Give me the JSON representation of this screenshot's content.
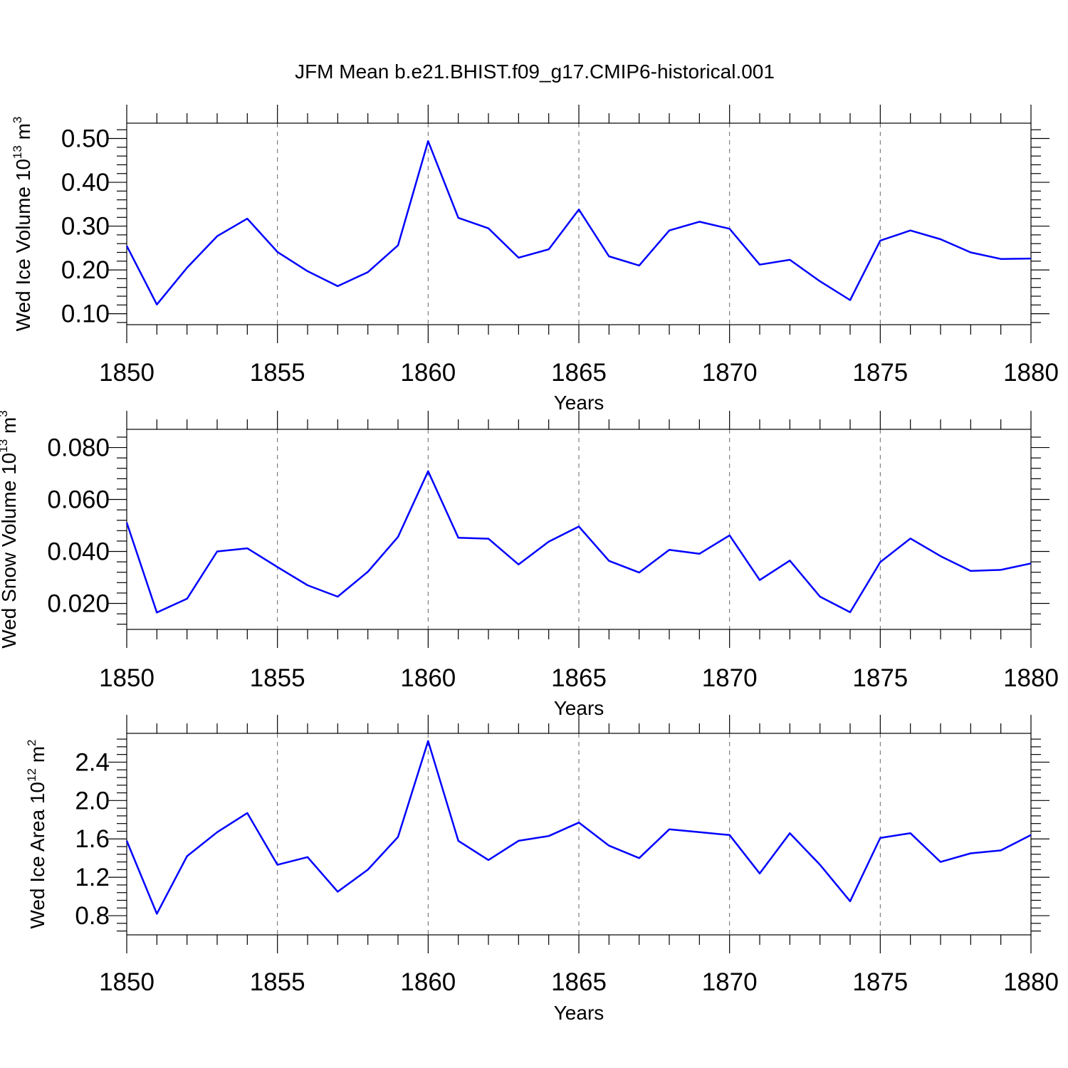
{
  "title": "JFM Mean b.e21.BHIST.f09_g17.CMIP6-historical.001",
  "colors": {
    "series": "#0000ff",
    "axis": "#000000",
    "grid": "#666666"
  },
  "chart_data": [
    {
      "type": "line",
      "ylabel": {
        "main": "Wed Ice Volume 10",
        "exp": "13",
        "unit": " m",
        "unit_exp": "3"
      },
      "xlabel": "Years",
      "xlim": [
        1850,
        1880
      ],
      "ylim": [
        0.075,
        0.535
      ],
      "x_ticks": [
        "1850",
        "1855",
        "1860",
        "1865",
        "1870",
        "1875",
        "1880"
      ],
      "y_ticks": [
        "0.10",
        "0.20",
        "0.30",
        "0.40",
        "0.50"
      ],
      "x": [
        1850,
        1851,
        1852,
        1853,
        1854,
        1855,
        1856,
        1857,
        1858,
        1859,
        1860,
        1861,
        1862,
        1863,
        1864,
        1865,
        1866,
        1867,
        1868,
        1869,
        1870,
        1871,
        1872,
        1873,
        1874,
        1875,
        1876,
        1877,
        1878,
        1879,
        1880
      ],
      "values": [
        0.255,
        0.121,
        0.205,
        0.277,
        0.317,
        0.241,
        0.197,
        0.163,
        0.195,
        0.256,
        0.494,
        0.319,
        0.295,
        0.228,
        0.247,
        0.338,
        0.231,
        0.21,
        0.29,
        0.31,
        0.294,
        0.212,
        0.223,
        0.174,
        0.131,
        0.267,
        0.29,
        0.27,
        0.24,
        0.225,
        0.226
      ]
    },
    {
      "type": "line",
      "ylabel": {
        "main": "Wed Snow Volume 10",
        "exp": "13",
        "unit": " m",
        "unit_exp": "3"
      },
      "xlabel": "Years",
      "xlim": [
        1850,
        1880
      ],
      "ylim": [
        0.01,
        0.087
      ],
      "x_ticks": [
        "1850",
        "1855",
        "1860",
        "1865",
        "1870",
        "1875",
        "1880"
      ],
      "y_ticks": [
        "0.020",
        "0.040",
        "0.060",
        "0.080"
      ],
      "x": [
        1850,
        1851,
        1852,
        1853,
        1854,
        1855,
        1856,
        1857,
        1858,
        1859,
        1860,
        1861,
        1862,
        1863,
        1864,
        1865,
        1866,
        1867,
        1868,
        1869,
        1870,
        1871,
        1872,
        1873,
        1874,
        1875,
        1876,
        1877,
        1878,
        1879,
        1880
      ],
      "values": [
        0.0511,
        0.0165,
        0.0218,
        0.04,
        0.0412,
        0.034,
        0.027,
        0.0226,
        0.0322,
        0.0456,
        0.0709,
        0.0453,
        0.0449,
        0.035,
        0.0438,
        0.0496,
        0.0364,
        0.0319,
        0.0406,
        0.0391,
        0.0462,
        0.029,
        0.0365,
        0.0226,
        0.0166,
        0.0359,
        0.045,
        0.0382,
        0.0325,
        0.0329,
        0.0354
      ]
    },
    {
      "type": "line",
      "ylabel": {
        "main": "Wed Ice Area 10",
        "exp": "12",
        "unit": " m",
        "unit_exp": "2"
      },
      "xlabel": "Years",
      "xlim": [
        1850,
        1880
      ],
      "ylim": [
        0.6,
        2.7
      ],
      "x_ticks": [
        "1850",
        "1855",
        "1860",
        "1865",
        "1870",
        "1875",
        "1880"
      ],
      "y_ticks": [
        "0.8",
        "1.2",
        "1.6",
        "2.0",
        "2.4"
      ],
      "x": [
        1850,
        1851,
        1852,
        1853,
        1854,
        1855,
        1856,
        1857,
        1858,
        1859,
        1860,
        1861,
        1862,
        1863,
        1864,
        1865,
        1866,
        1867,
        1868,
        1869,
        1870,
        1871,
        1872,
        1873,
        1874,
        1875,
        1876,
        1877,
        1878,
        1879,
        1880
      ],
      "values": [
        1.58,
        0.82,
        1.42,
        1.67,
        1.87,
        1.33,
        1.41,
        1.05,
        1.28,
        1.62,
        2.62,
        1.58,
        1.38,
        1.58,
        1.63,
        1.77,
        1.53,
        1.4,
        1.7,
        1.67,
        1.64,
        1.24,
        1.66,
        1.33,
        0.95,
        1.61,
        1.66,
        1.36,
        1.45,
        1.48,
        1.64
      ]
    }
  ]
}
